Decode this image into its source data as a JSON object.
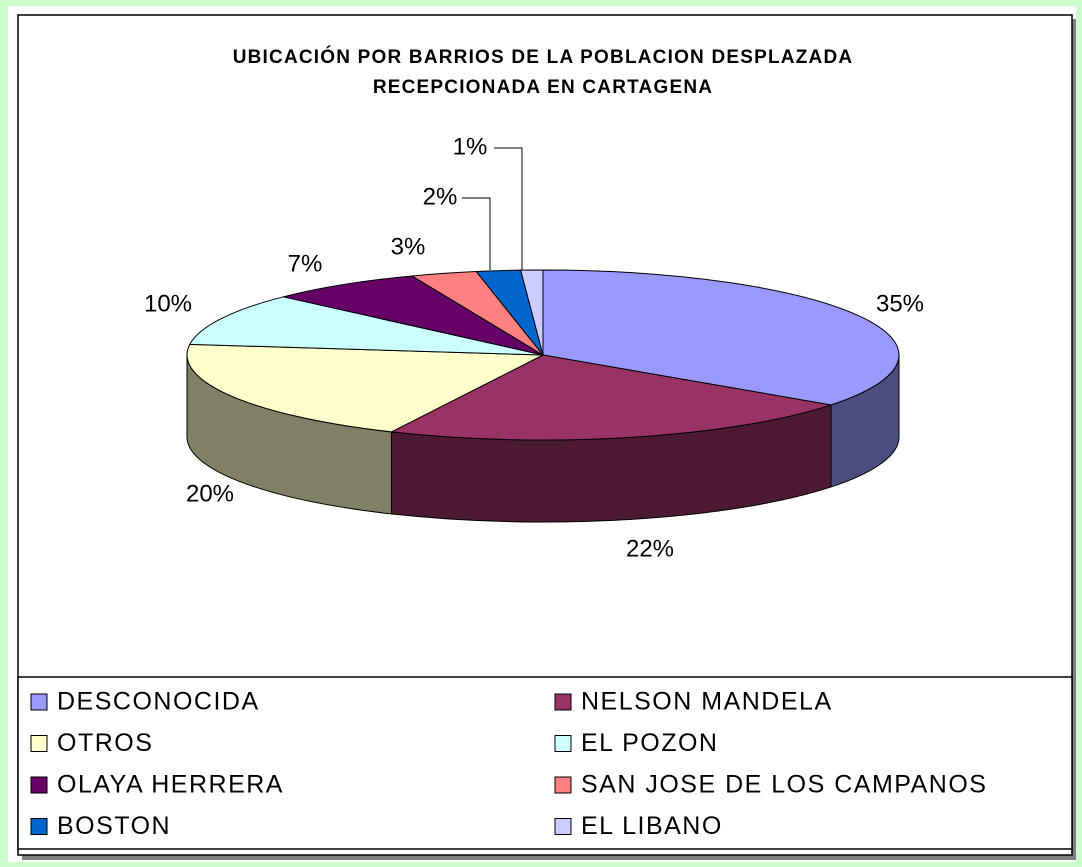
{
  "chart_data": {
    "type": "pie3d",
    "title": [
      "UBICACIÓN POR BARRIOS DE LA POBLACION DESPLAZADA",
      "RECEPCIONADA EN CARTAGENA"
    ],
    "categories": [
      "DESCONOCIDA",
      "NELSON MANDELA",
      "OTROS",
      "EL POZON",
      "OLAYA HERRERA",
      "SAN JOSE DE LOS CAMPANOS",
      "BOSTON",
      "EL LIBANO"
    ],
    "values": [
      35,
      22,
      20,
      10,
      7,
      3,
      2,
      1
    ],
    "value_labels": [
      "35%",
      "22%",
      "20%",
      "10%",
      "7%",
      "3%",
      "2%",
      "1%"
    ],
    "colors": [
      "#9999ff",
      "#993366",
      "#ffffcc",
      "#ccffff",
      "#660066",
      "#ff8080",
      "#0066cc",
      "#ccccff"
    ],
    "legend": "bottom"
  }
}
